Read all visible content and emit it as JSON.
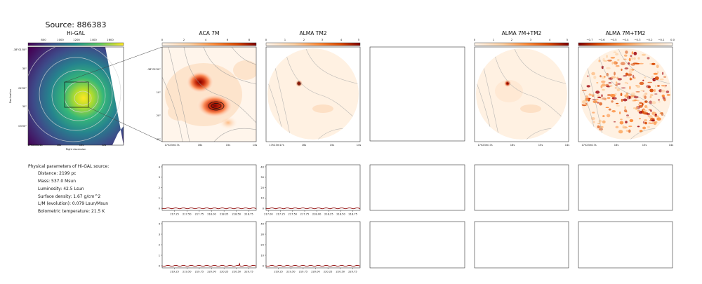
{
  "source_title": "Source: 886383",
  "panels": {
    "higal": {
      "title": "Hi-GAL",
      "colorbar_ticks": [
        "800",
        "1000",
        "1200",
        "1400",
        "1600"
      ],
      "colormap": [
        "#440154",
        "#3b528b",
        "#21918c",
        "#5ec962",
        "#fde725"
      ],
      "yticks": [
        "-38°01'00\"",
        "30\"",
        "02'00\"",
        "30\"",
        "03'00\""
      ],
      "xticks": [
        "17h23m21s",
        "18s",
        "15s",
        "12s"
      ],
      "ylabel": "Declination",
      "xlabel": "Right Ascension"
    },
    "aca7m": {
      "title": "ACA 7M",
      "colorbar_ticks": [
        "0",
        "2",
        "4",
        "6",
        "8"
      ],
      "yticks": [
        "-38°02'00\"",
        "10\"",
        "20\"",
        "30\""
      ],
      "xticks": [
        "17h23m17s",
        "16s",
        "15s",
        "14s"
      ]
    },
    "almatm2": {
      "title": "ALMA TM2",
      "colorbar_ticks": [
        "0",
        "1",
        "2",
        "3",
        "4",
        "5"
      ],
      "xticks": [
        "17h23m17s",
        "16s",
        "15s",
        "14s"
      ]
    },
    "alma7mtm2": {
      "title": "ALMA 7M+TM2",
      "colorbar_ticks": [
        "0",
        "1",
        "2",
        "3",
        "4",
        "5"
      ],
      "xticks": [
        "17h23m17s",
        "16s",
        "15s",
        "14s"
      ]
    },
    "alma7mtm2_neg": {
      "title": "ALMA 7M+TM2",
      "colorbar_ticks": [
        "−0.7",
        "−0.6",
        "−0.5",
        "−0.4",
        "−0.3",
        "−0.2",
        "−0.1",
        "0.0"
      ],
      "xticks": [
        "17h23m17s",
        "16s",
        "15s",
        "14s"
      ]
    },
    "colormap_heat": [
      "#fff5eb",
      "#fdd0a2",
      "#fd8d3c",
      "#d94801",
      "#7f0000"
    ]
  },
  "info": {
    "header": "Physical parameters of Hi-GAL source:",
    "lines": [
      "Distance: 2199 pc",
      "Mass: 537.0 Msun",
      "Luminosity: 42.5 Lsun",
      "Surface density: 1.67 g/cm^2",
      "L/M (evolution): 0.079 Lsun/Msun",
      "Bolometric temperature: 21.5 K"
    ]
  },
  "chart_data": [
    {
      "type": "line",
      "name": "spectrum_aca_row1",
      "x_ticks": [
        "217.25",
        "217.50",
        "217.75",
        "218.00",
        "218.25",
        "218.50",
        "218.75"
      ],
      "y_ticks": [
        "0",
        "1",
        "2",
        "3",
        "4"
      ],
      "xlim": [
        217.0,
        218.9
      ],
      "ylim": [
        -0.2,
        4.2
      ],
      "x": [
        217.0,
        218.9
      ],
      "y": [
        0.0,
        0.0
      ],
      "color": "#8b0000"
    },
    {
      "type": "line",
      "name": "spectrum_tm2_row1",
      "x_ticks": [
        "217.00",
        "217.25",
        "217.50",
        "217.75",
        "218.00",
        "218.25",
        "218.50",
        "218.75"
      ],
      "y_ticks": [
        "0",
        "10",
        "20",
        "30",
        "40"
      ],
      "xlim": [
        216.95,
        218.9
      ],
      "ylim": [
        -2,
        42
      ],
      "x": [
        216.95,
        218.9
      ],
      "y": [
        0.0,
        0.0
      ],
      "color": "#8b0000"
    },
    {
      "type": "line",
      "name": "spectrum_aca_row2",
      "x_ticks": [
        "219.25",
        "219.50",
        "219.75",
        "220.00",
        "220.25",
        "220.50",
        "220.75"
      ],
      "y_ticks": [
        "0",
        "1",
        "2",
        "3",
        "4"
      ],
      "xlim": [
        219.0,
        220.9
      ],
      "ylim": [
        -0.2,
        4.2
      ],
      "x": [
        219.0,
        220.55,
        220.56,
        220.57,
        220.9
      ],
      "y": [
        0.0,
        0.0,
        0.25,
        0.0,
        0.0
      ],
      "color": "#8b0000"
    },
    {
      "type": "line",
      "name": "spectrum_tm2_row2",
      "x_ticks": [
        "219.25",
        "219.50",
        "219.75",
        "220.00",
        "220.25",
        "220.50",
        "220.75"
      ],
      "y_ticks": [
        "0",
        "10",
        "20",
        "30",
        "40"
      ],
      "xlim": [
        219.0,
        220.9
      ],
      "ylim": [
        -2,
        42
      ],
      "x": [
        219.0,
        220.9
      ],
      "y": [
        0.0,
        0.0
      ],
      "color": "#8b0000"
    }
  ]
}
